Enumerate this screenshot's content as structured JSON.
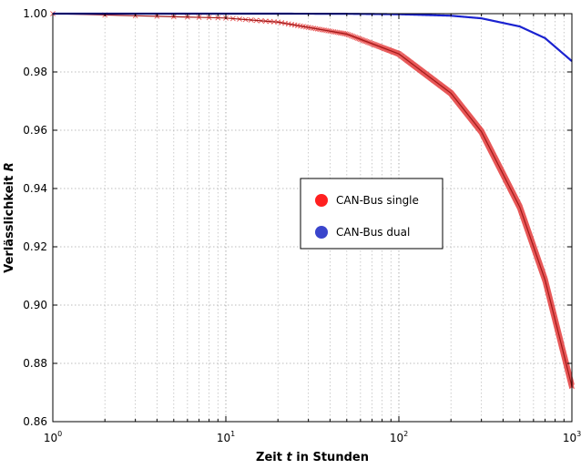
{
  "chart_data": {
    "type": "line",
    "xscale": "log",
    "xlim": [
      1,
      1000
    ],
    "ylim": [
      0.86,
      1.0
    ],
    "xlabel": {
      "pre": "Zeit ",
      "var": "t",
      "post": " in Stunden"
    },
    "ylabel": {
      "pre": "Verlässlichkeit ",
      "var": "R"
    },
    "xticks": [
      {
        "base": "10",
        "exp": "0",
        "value": 1
      },
      {
        "base": "10",
        "exp": "1",
        "value": 10
      },
      {
        "base": "10",
        "exp": "2",
        "value": 100
      },
      {
        "base": "10",
        "exp": "3",
        "value": 1000
      }
    ],
    "yticks": [
      "0.86",
      "0.88",
      "0.90",
      "0.92",
      "0.94",
      "0.96",
      "0.98",
      "1.00"
    ],
    "grid": true,
    "legend_position": "center-right",
    "series": [
      {
        "name": "CAN-Bus single",
        "color": "#ff2020",
        "marker_color": "#e02020",
        "line_color": "#a01818",
        "marker": "x",
        "points": [
          [
            1,
            1.0
          ],
          [
            10,
            0.9985
          ],
          [
            20,
            0.9971
          ],
          [
            50,
            0.993
          ],
          [
            100,
            0.9862
          ],
          [
            200,
            0.9727
          ],
          [
            300,
            0.9595
          ],
          [
            500,
            0.9336
          ],
          [
            700,
            0.9086
          ],
          [
            1000,
            0.8721
          ]
        ]
      },
      {
        "name": "CAN-Bus dual",
        "color": "#3a45cc",
        "marker_color": "#1a22d0",
        "line_color": "#1a22d0",
        "marker": "dot",
        "points": [
          [
            1,
            1.0
          ],
          [
            10,
            1.0
          ],
          [
            20,
            1.0
          ],
          [
            50,
            0.99995
          ],
          [
            100,
            0.9998
          ],
          [
            200,
            0.9993
          ],
          [
            300,
            0.9984
          ],
          [
            500,
            0.9956
          ],
          [
            700,
            0.9916
          ],
          [
            1000,
            0.9837
          ]
        ]
      }
    ]
  }
}
